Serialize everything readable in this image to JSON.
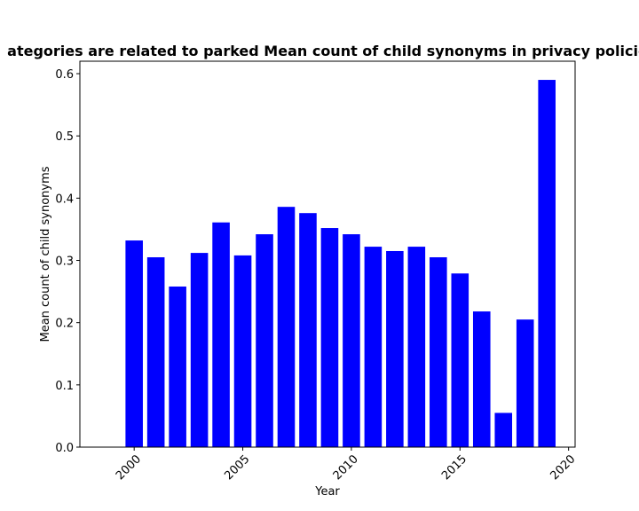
{
  "chart_data": {
    "type": "bar",
    "title": "ategories are related to parked Mean count of child synonyms in privacy policie",
    "xlabel": "Year",
    "ylabel": "Mean count of child synonyms",
    "x": [
      2000,
      2001,
      2002,
      2003,
      2004,
      2005,
      2006,
      2007,
      2008,
      2009,
      2010,
      2011,
      2012,
      2013,
      2014,
      2015,
      2016,
      2017,
      2018,
      2019
    ],
    "values": [
      0.332,
      0.305,
      0.258,
      0.312,
      0.361,
      0.308,
      0.342,
      0.386,
      0.376,
      0.352,
      0.342,
      0.322,
      0.315,
      0.322,
      0.305,
      0.279,
      0.218,
      0.055,
      0.205,
      0.59
    ],
    "xlim": [
      1997.5,
      2020.3
    ],
    "ylim": [
      0,
      0.62
    ],
    "x_ticks": [
      2000,
      2005,
      2010,
      2015,
      2020
    ],
    "y_ticks": [
      0.0,
      0.1,
      0.2,
      0.3,
      0.4,
      0.5,
      0.6
    ],
    "y_tick_labels": [
      "0.0",
      "0.1",
      "0.2",
      "0.3",
      "0.4",
      "0.5",
      "0.6"
    ],
    "bar_color": "#0000ff",
    "grid": false,
    "legend": "none"
  }
}
